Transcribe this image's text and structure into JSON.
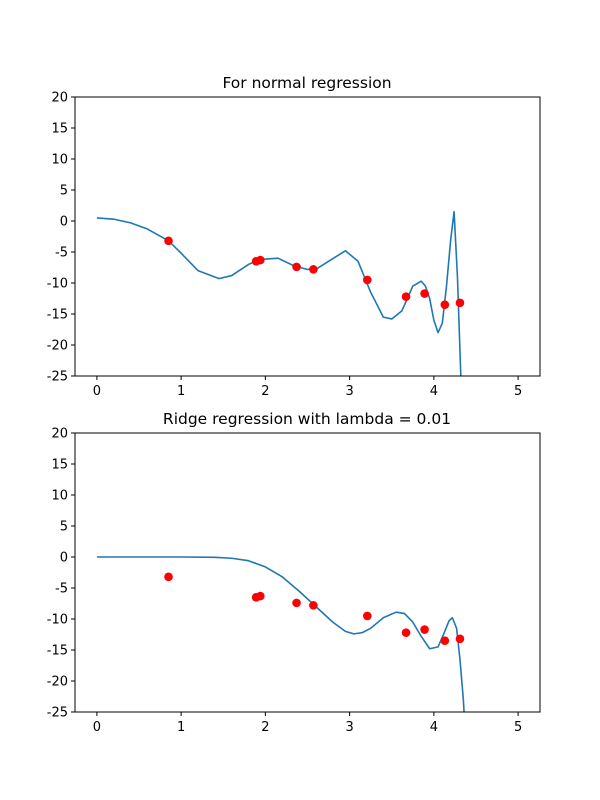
{
  "chart_data": [
    {
      "type": "line",
      "title": "For normal regression",
      "xlabel": "",
      "ylabel": "",
      "xlim": [
        -0.26,
        5.26
      ],
      "ylim": [
        -25,
        20
      ],
      "xticks": [
        0,
        1,
        2,
        3,
        4,
        5
      ],
      "yticks": [
        -25,
        -20,
        -15,
        -10,
        -5,
        0,
        5,
        10,
        15,
        20
      ],
      "grid": false,
      "line_color": "#1f77b4",
      "point_color": "#ff0000",
      "points": {
        "x": [
          0.85,
          1.89,
          1.94,
          2.37,
          2.57,
          3.21,
          3.67,
          3.89,
          4.13,
          4.31
        ],
        "y": [
          -3.2,
          -6.5,
          -6.3,
          -7.4,
          -7.8,
          -9.5,
          -12.2,
          -11.7,
          -13.5,
          -13.2
        ]
      },
      "curve": {
        "x": [
          0,
          0.2,
          0.4,
          0.6,
          0.85,
          1.0,
          1.2,
          1.45,
          1.6,
          1.8,
          1.94,
          2.15,
          2.35,
          2.5,
          2.6,
          2.75,
          2.95,
          3.1,
          3.25,
          3.4,
          3.5,
          3.62,
          3.75,
          3.85,
          3.9,
          3.95,
          4.0,
          4.05,
          4.1,
          4.15,
          4.2,
          4.24,
          4.28,
          4.32,
          4.35
        ],
        "y": [
          0.5,
          0.3,
          -0.3,
          -1.3,
          -3.2,
          -5.2,
          -8.0,
          -9.3,
          -8.8,
          -7.0,
          -6.2,
          -6.0,
          -7.3,
          -7.8,
          -7.8,
          -6.5,
          -4.8,
          -6.5,
          -11.5,
          -15.5,
          -15.8,
          -14.5,
          -10.5,
          -9.7,
          -10.5,
          -12.5,
          -16.0,
          -18.0,
          -16.5,
          -10.5,
          -3.0,
          1.5,
          -9.0,
          -25.0,
          -40.0
        ]
      }
    },
    {
      "type": "line",
      "title": "Ridge regression with lambda = 0.01",
      "xlabel": "",
      "ylabel": "",
      "xlim": [
        -0.26,
        5.26
      ],
      "ylim": [
        -25,
        20
      ],
      "xticks": [
        0,
        1,
        2,
        3,
        4,
        5
      ],
      "yticks": [
        -25,
        -20,
        -15,
        -10,
        -5,
        0,
        5,
        10,
        15,
        20
      ],
      "grid": false,
      "line_color": "#1f77b4",
      "point_color": "#ff0000",
      "points": {
        "x": [
          0.85,
          1.89,
          1.94,
          2.37,
          2.57,
          3.21,
          3.67,
          3.89,
          4.13,
          4.31
        ],
        "y": [
          -3.2,
          -6.5,
          -6.3,
          -7.4,
          -7.8,
          -9.5,
          -12.2,
          -11.7,
          -13.5,
          -13.2
        ]
      },
      "curve": {
        "x": [
          0,
          0.5,
          1.0,
          1.4,
          1.6,
          1.8,
          2.0,
          2.2,
          2.4,
          2.6,
          2.8,
          2.95,
          3.05,
          3.15,
          3.25,
          3.4,
          3.55,
          3.65,
          3.75,
          3.85,
          3.95,
          4.05,
          4.12,
          4.18,
          4.22,
          4.27,
          4.31,
          4.35,
          4.38
        ],
        "y": [
          0,
          0,
          0,
          -0.05,
          -0.2,
          -0.6,
          -1.6,
          -3.2,
          -5.5,
          -8.0,
          -10.5,
          -12.0,
          -12.4,
          -12.2,
          -11.5,
          -9.8,
          -8.9,
          -9.1,
          -10.5,
          -12.8,
          -14.8,
          -14.5,
          -12.3,
          -10.3,
          -9.8,
          -11.5,
          -16.5,
          -23.0,
          -30.0
        ]
      }
    }
  ]
}
